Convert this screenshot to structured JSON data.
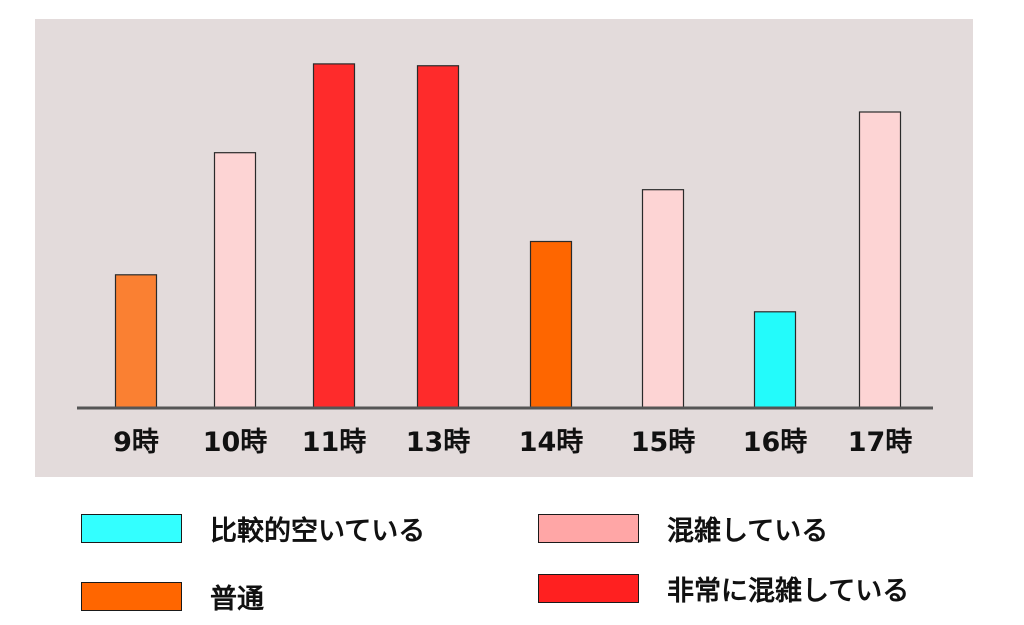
{
  "chart_data": {
    "type": "bar",
    "categories": [
      "9時",
      "10時",
      "11時",
      "13時",
      "14時",
      "15時",
      "16時",
      "17時"
    ],
    "values": [
      36,
      69,
      93,
      92.5,
      45,
      59,
      26,
      80
    ],
    "levels": [
      "普通",
      "混雑している",
      "非常に混雑している",
      "非常に混雑している",
      "普通",
      "混雑している",
      "比較的空いている",
      "混雑している"
    ],
    "bar_colors": [
      "#fa8032",
      "#fdd4d4",
      "#fe2b2b",
      "#fe2b2b",
      "#fe6600",
      "#fdd4d4",
      "#23fbfb",
      "#fdd4d4"
    ],
    "ylim": [
      0,
      100
    ],
    "grid": false
  },
  "legend": [
    {
      "label": "比較的空いている",
      "color": "#33ffff"
    },
    {
      "label": "混雑している",
      "color": "#ffa6a6"
    },
    {
      "label": "普通",
      "color": "#ff6600"
    },
    {
      "label": "非常に混雑している",
      "color": "#ff2020"
    }
  ]
}
